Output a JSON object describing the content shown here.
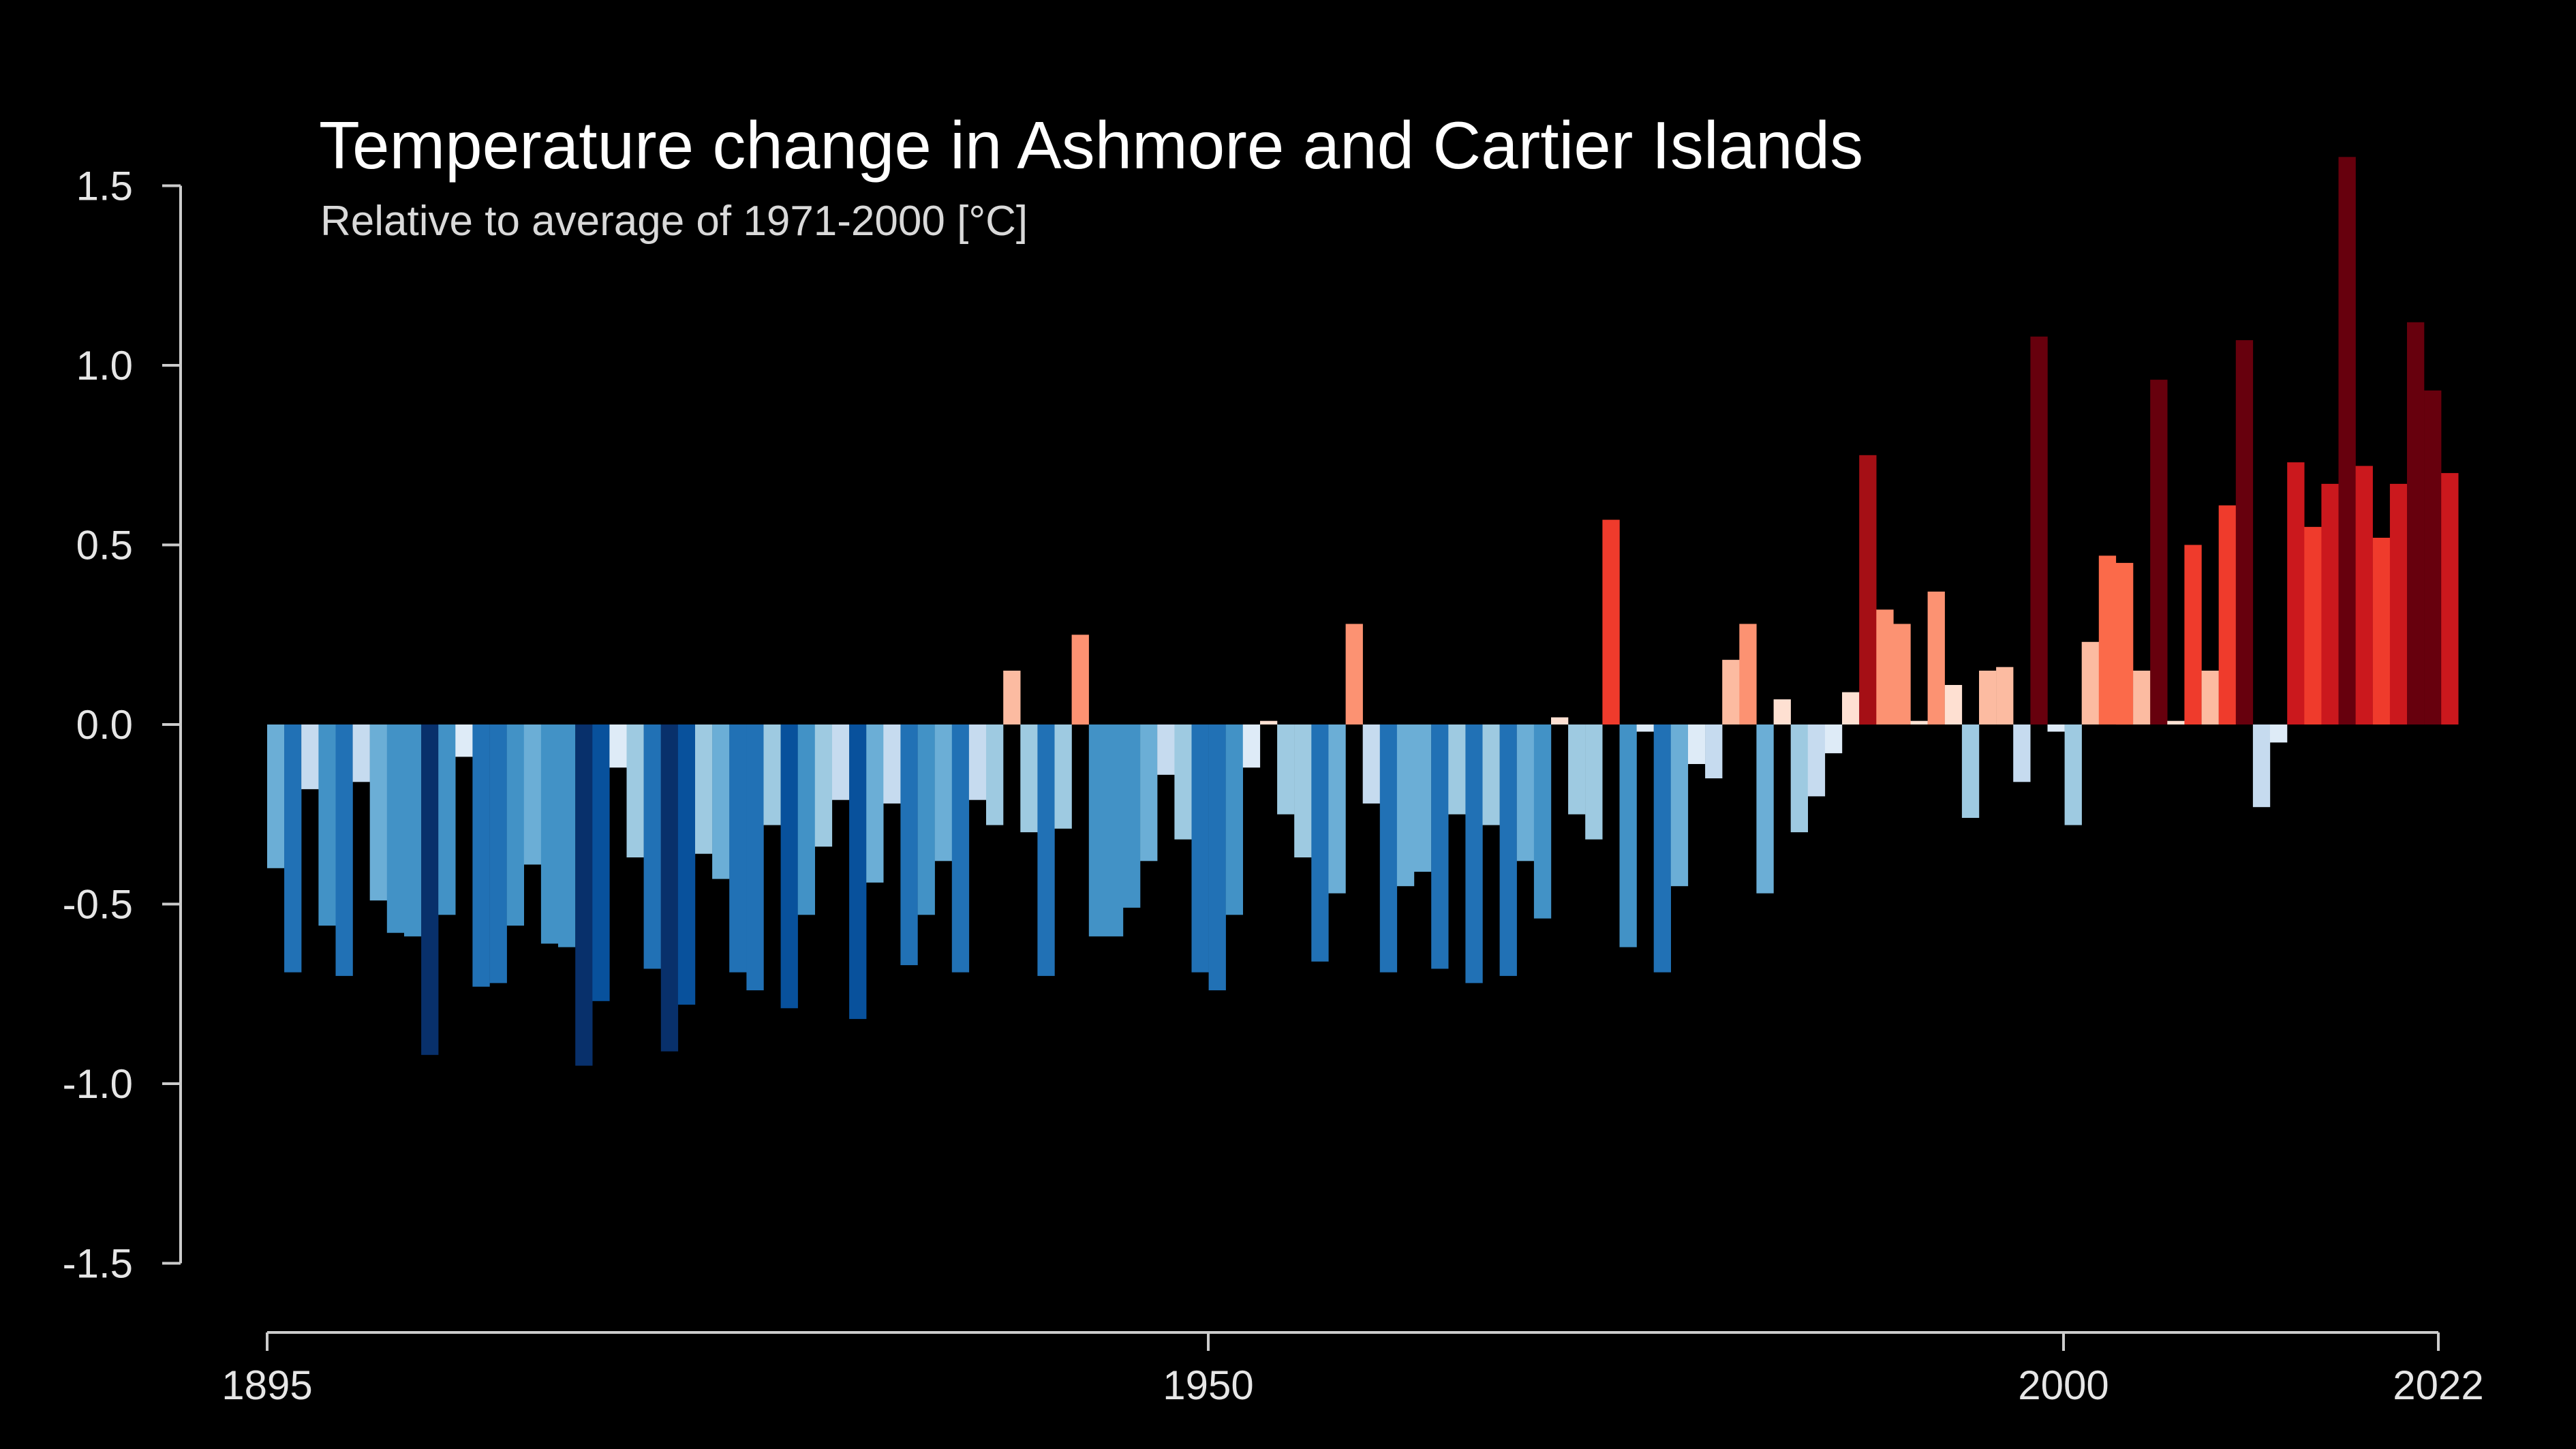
{
  "chart_data": {
    "type": "bar",
    "title": "Temperature change in Ashmore and Cartier Islands",
    "subtitle": "Relative to average of 1971-2000  [°C]",
    "xlabel": "",
    "ylabel": "",
    "ylim": [
      -1.5,
      1.5
    ],
    "yticks": [
      "1.5",
      "1.0",
      "0.5",
      "0.0",
      "-0.5",
      "-1.0",
      "-1.5"
    ],
    "xticks": [
      "1895",
      "1950",
      "2000",
      "2022"
    ],
    "grid": false,
    "legend": "none",
    "colors": {
      "background": "#000000",
      "axis": "#cccccc",
      "cold_scale": [
        "#deebf7",
        "#c6dbef",
        "#9ecae1",
        "#6baed6",
        "#4292c6",
        "#2171b5",
        "#08519c",
        "#08306b"
      ],
      "warm_scale": [
        "#fee0d2",
        "#fcbba1",
        "#fc9272",
        "#fb6a4a",
        "#ef3b2c",
        "#cb181d",
        "#a50f15",
        "#67000d"
      ]
    },
    "categories": [
      1895,
      1896,
      1897,
      1898,
      1899,
      1900,
      1901,
      1902,
      1903,
      1904,
      1905,
      1906,
      1907,
      1908,
      1909,
      1910,
      1911,
      1912,
      1913,
      1914,
      1915,
      1916,
      1917,
      1918,
      1919,
      1920,
      1921,
      1922,
      1923,
      1924,
      1925,
      1926,
      1927,
      1928,
      1929,
      1930,
      1931,
      1932,
      1933,
      1934,
      1935,
      1936,
      1937,
      1938,
      1939,
      1940,
      1941,
      1942,
      1943,
      1944,
      1945,
      1946,
      1947,
      1948,
      1949,
      1950,
      1951,
      1952,
      1953,
      1954,
      1955,
      1956,
      1957,
      1958,
      1959,
      1960,
      1961,
      1962,
      1963,
      1964,
      1965,
      1966,
      1967,
      1968,
      1969,
      1970,
      1971,
      1972,
      1973,
      1974,
      1975,
      1976,
      1977,
      1978,
      1979,
      1980,
      1981,
      1982,
      1983,
      1984,
      1985,
      1986,
      1987,
      1988,
      1989,
      1990,
      1991,
      1992,
      1993,
      1994,
      1995,
      1996,
      1997,
      1998,
      1999,
      2000,
      2001,
      2002,
      2003,
      2004,
      2005,
      2006,
      2007,
      2008,
      2009,
      2010,
      2011,
      2012,
      2013,
      2014,
      2015,
      2016,
      2017,
      2018,
      2019,
      2020,
      2021,
      2022
    ],
    "values": [
      -0.4,
      -0.69,
      -0.18,
      -0.56,
      -0.7,
      -0.16,
      -0.49,
      -0.58,
      -0.59,
      -0.92,
      -0.53,
      -0.09,
      -0.73,
      -0.72,
      -0.56,
      -0.39,
      -0.61,
      -0.62,
      -0.95,
      -0.77,
      -0.12,
      -0.37,
      -0.68,
      -0.91,
      -0.78,
      -0.36,
      -0.43,
      -0.69,
      -0.74,
      -0.28,
      -0.79,
      -0.53,
      -0.34,
      -0.21,
      -0.82,
      -0.44,
      -0.22,
      -0.67,
      -0.53,
      -0.38,
      -0.69,
      -0.21,
      -0.28,
      0.15,
      -0.3,
      -0.7,
      -0.29,
      0.25,
      -0.59,
      -0.59,
      -0.51,
      -0.38,
      -0.14,
      -0.32,
      -0.69,
      -0.74,
      -0.53,
      -0.12,
      0.01,
      -0.25,
      -0.37,
      -0.66,
      -0.47,
      0.28,
      -0.22,
      -0.69,
      -0.45,
      -0.41,
      -0.68,
      -0.25,
      -0.72,
      -0.28,
      -0.7,
      -0.38,
      -0.54,
      0.02,
      -0.25,
      -0.32,
      0.57,
      -0.62,
      -0.02,
      -0.69,
      -0.45,
      -0.11,
      -0.15,
      0.18,
      0.28,
      -0.47,
      0.07,
      -0.3,
      -0.2,
      -0.08,
      0.09,
      0.75,
      0.32,
      0.28,
      0.01,
      0.37,
      0.11,
      -0.26,
      0.15,
      0.16,
      -0.16,
      1.08,
      -0.02,
      -0.28,
      0.23,
      0.47,
      0.45,
      0.15,
      0.96,
      0.01,
      0.5,
      0.15,
      0.61,
      1.07,
      -0.23,
      -0.05,
      0.73,
      0.55,
      0.67,
      1.58,
      0.72,
      0.52,
      0.67,
      1.12,
      0.93,
      0.7
    ]
  }
}
